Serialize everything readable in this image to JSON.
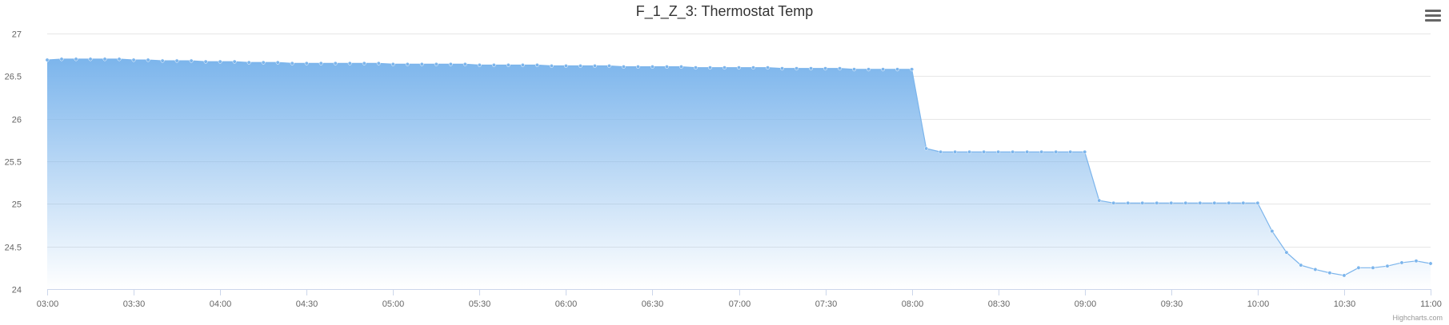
{
  "colors": {
    "series": "#7cb5ec",
    "area_top": "#7cb5ec",
    "grid": "#e6e6e6",
    "axis_text": "#666666",
    "title": "#333333"
  },
  "menu": {
    "icon": "hamburger-menu-icon"
  },
  "credits": "Highcharts.com",
  "chart_data": {
    "type": "area",
    "title": "F_1_Z_3: Thermostat Temp",
    "xlabel": "",
    "ylabel": "",
    "ylim": [
      24,
      27
    ],
    "yticks": [
      24,
      24.5,
      25,
      25.5,
      26,
      26.5,
      27
    ],
    "ytick_labels": [
      "24",
      "24.5",
      "25",
      "25.5",
      "26",
      "26.5",
      "27"
    ],
    "xlim": [
      "03:00",
      "11:00"
    ],
    "xtick_labels": [
      "03:00",
      "03:30",
      "04:00",
      "04:30",
      "05:00",
      "05:30",
      "06:00",
      "06:30",
      "07:00",
      "07:30",
      "08:00",
      "08:30",
      "09:00",
      "09:30",
      "10:00",
      "10:30",
      "11:00"
    ],
    "grid": true,
    "legend": "none",
    "series": [
      {
        "x": [
          "03:00",
          "03:05",
          "03:10",
          "03:15",
          "03:20",
          "03:25",
          "03:30",
          "03:35",
          "03:40",
          "03:45",
          "03:50",
          "03:55",
          "04:00",
          "04:05",
          "04:10",
          "04:15",
          "04:20",
          "04:25",
          "04:30",
          "04:35",
          "04:40",
          "04:45",
          "04:50",
          "04:55",
          "05:00",
          "05:05",
          "05:10",
          "05:15",
          "05:20",
          "05:25",
          "05:30",
          "05:35",
          "05:40",
          "05:45",
          "05:50",
          "05:55",
          "06:00",
          "06:05",
          "06:10",
          "06:15",
          "06:20",
          "06:25",
          "06:30",
          "06:35",
          "06:40",
          "06:45",
          "06:50",
          "06:55",
          "07:00",
          "07:05",
          "07:10",
          "07:15",
          "07:20",
          "07:25",
          "07:30",
          "07:35",
          "07:40",
          "07:45",
          "07:50",
          "07:55",
          "08:00",
          "08:05",
          "08:10",
          "08:15",
          "08:20",
          "08:25",
          "08:30",
          "08:35",
          "08:40",
          "08:45",
          "08:50",
          "08:55",
          "09:00",
          "09:05",
          "09:10",
          "09:15",
          "09:20",
          "09:25",
          "09:30",
          "09:35",
          "09:40",
          "09:45",
          "09:50",
          "09:55",
          "10:00",
          "10:05",
          "10:10",
          "10:15",
          "10:20",
          "10:25",
          "10:30",
          "10:35",
          "10:40",
          "10:45",
          "10:50",
          "10:55",
          "11:00"
        ],
        "values": [
          26.69,
          26.7,
          26.7,
          26.7,
          26.7,
          26.7,
          26.69,
          26.69,
          26.68,
          26.68,
          26.68,
          26.67,
          26.67,
          26.67,
          26.66,
          26.66,
          26.66,
          26.65,
          26.65,
          26.65,
          26.65,
          26.65,
          26.65,
          26.65,
          26.64,
          26.64,
          26.64,
          26.64,
          26.64,
          26.64,
          26.63,
          26.63,
          26.63,
          26.63,
          26.63,
          26.62,
          26.62,
          26.62,
          26.62,
          26.62,
          26.61,
          26.61,
          26.61,
          26.61,
          26.61,
          26.6,
          26.6,
          26.6,
          26.6,
          26.6,
          26.6,
          26.59,
          26.59,
          26.59,
          26.59,
          26.59,
          26.58,
          26.58,
          26.58,
          26.58,
          26.58,
          25.65,
          25.61,
          25.61,
          25.61,
          25.61,
          25.61,
          25.61,
          25.61,
          25.61,
          25.61,
          25.61,
          25.61,
          25.04,
          25.01,
          25.01,
          25.01,
          25.01,
          25.01,
          25.01,
          25.01,
          25.01,
          25.01,
          25.01,
          25.01,
          24.68,
          24.43,
          24.28,
          24.23,
          24.19,
          24.16,
          24.25,
          24.25,
          24.27,
          24.31,
          24.33,
          24.3
        ]
      }
    ]
  }
}
